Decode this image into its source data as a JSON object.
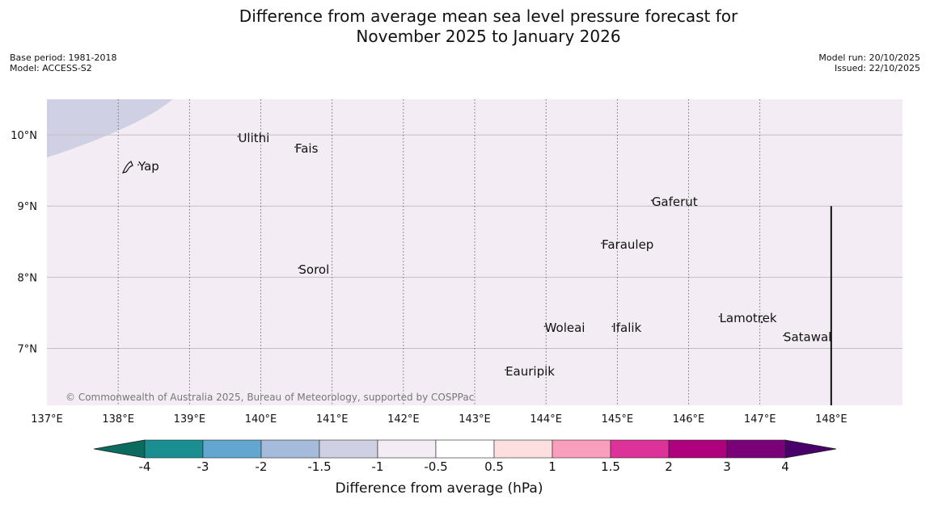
{
  "title": {
    "line1": "Difference from average mean sea level pressure forecast for",
    "line2": "November 2025 to January 2026"
  },
  "meta": {
    "base_period": "Base period: 1981-2018",
    "model": "Model: ACCESS-S2",
    "model_run": "Model run: 20/10/2025",
    "issued": "Issued: 22/10/2025"
  },
  "map": {
    "lon_range": [
      137,
      149
    ],
    "lat_range": [
      6.2,
      10.5
    ],
    "lon_ticks": [
      "137°E",
      "138°E",
      "139°E",
      "140°E",
      "141°E",
      "142°E",
      "143°E",
      "144°E",
      "145°E",
      "146°E",
      "147°E",
      "148°E"
    ],
    "lon_values": [
      137,
      138,
      139,
      140,
      141,
      142,
      143,
      144,
      145,
      146,
      147,
      148
    ],
    "lat_ticks": [
      "10°N",
      "9°N",
      "8°N",
      "7°N"
    ],
    "lat_values": [
      10,
      9,
      8,
      7
    ],
    "background_color": "#f3ecf4",
    "contour_color": "#cfd0e3",
    "copyright": "© Commonwealth of Australia 2025, Bureau of Meteorology, supported by COSPPac",
    "places": [
      {
        "name": "Ulithi",
        "lon": 139.75,
        "lat": 9.9
      },
      {
        "name": "Fais",
        "lon": 140.55,
        "lat": 9.75
      },
      {
        "name": "Yap",
        "lon": 138.35,
        "lat": 9.5
      },
      {
        "name": "Gaferut",
        "lon": 145.55,
        "lat": 9.0
      },
      {
        "name": "Faraulep",
        "lon": 144.85,
        "lat": 8.4
      },
      {
        "name": "Sorol",
        "lon": 140.6,
        "lat": 8.05
      },
      {
        "name": "Lamotrek",
        "lon": 146.5,
        "lat": 7.37
      },
      {
        "name": "Woleai",
        "lon": 144.05,
        "lat": 7.23
      },
      {
        "name": "Ifalik",
        "lon": 145.0,
        "lat": 7.23
      },
      {
        "name": "Satawal",
        "lon": 147.4,
        "lat": 7.1
      },
      {
        "name": "Eauripik",
        "lon": 143.5,
        "lat": 6.62
      }
    ]
  },
  "colorbar": {
    "label": "Difference from average (hPa)",
    "tick_labels": [
      "-4",
      "-3",
      "-2",
      "-1.5",
      "-1",
      "-0.5",
      "0.5",
      "1",
      "1.5",
      "2",
      "3",
      "4"
    ],
    "colors": [
      "#1a8f92",
      "#62a7cf",
      "#a6bbdc",
      "#cfd0e3",
      "#f3ecf4",
      "#ffffff",
      "#fddfdf",
      "#f99fbd",
      "#dc329a",
      "#ad017e",
      "#7a0177"
    ],
    "under_color": "#0b6b5f",
    "over_color": "#49006a"
  }
}
